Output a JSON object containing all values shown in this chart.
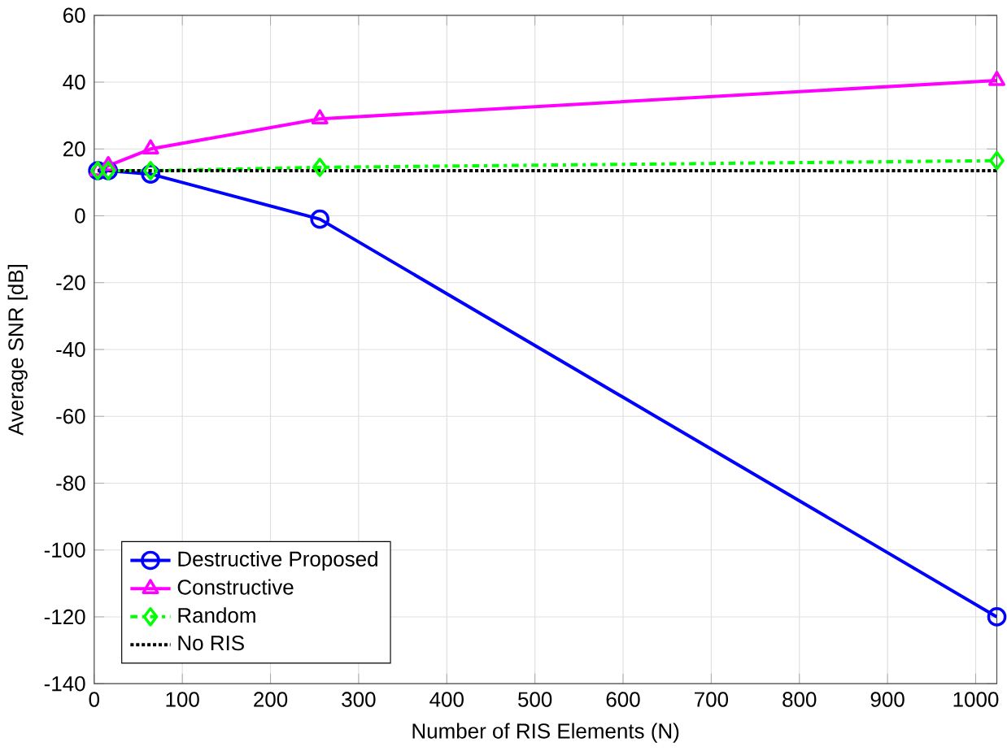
{
  "chart_data": {
    "type": "line",
    "xlabel": "Number of RIS Elements (N)",
    "ylabel": "Average SNR [dB]",
    "x": [
      4,
      16,
      64,
      256,
      1024
    ],
    "series": [
      {
        "name": "Destructive Proposed",
        "color": "#0000ff",
        "marker": "circle",
        "line_style": "solid",
        "values": [
          13.5,
          13.5,
          12.5,
          -1,
          -120
        ]
      },
      {
        "name": "Constructive",
        "color": "#ff00ff",
        "marker": "triangle",
        "line_style": "solid",
        "values": [
          13.5,
          15,
          20,
          29,
          40.5
        ]
      },
      {
        "name": "Random",
        "color": "#00ff00",
        "marker": "diamond",
        "line_style": "dashed",
        "values": [
          13.5,
          13.5,
          13.5,
          14.5,
          16.5
        ]
      },
      {
        "name": "No RIS",
        "color": "#000000",
        "marker": "none",
        "line_style": "dotted",
        "values": [
          13.5,
          13.5,
          13.5,
          13.5,
          13.5
        ]
      }
    ],
    "xlim": [
      0,
      1024
    ],
    "ylim": [
      -140,
      60
    ],
    "xticks": [
      0,
      100,
      200,
      300,
      400,
      500,
      600,
      700,
      800,
      900,
      1000
    ],
    "yticks": [
      -140,
      -120,
      -100,
      -80,
      -60,
      -40,
      -20,
      0,
      20,
      40,
      60
    ],
    "grid": true,
    "legend": "bottom left"
  }
}
